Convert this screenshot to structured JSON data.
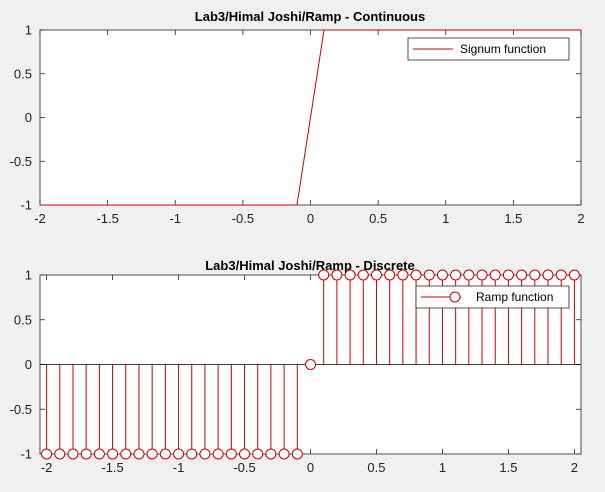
{
  "chart_data": [
    {
      "type": "line",
      "title": "Lab3/Himal Joshi/Ramp - Continuous",
      "xlabel": "",
      "ylabel": "",
      "xlim": [
        -2,
        2
      ],
      "ylim": [
        -1,
        1
      ],
      "xticks": [
        -2,
        -1.5,
        -1,
        -0.5,
        0,
        0.5,
        1,
        1.5,
        2
      ],
      "xtick_labels": [
        "-2",
        "-1.5",
        "-1",
        "-0.5",
        "0",
        "0.5",
        "1",
        "1.5",
        "2"
      ],
      "yticks": [
        1,
        0.5,
        0,
        -0.5,
        -1
      ],
      "ytick_labels": [
        "1",
        "0.5",
        "0",
        "-0.5",
        "-1"
      ],
      "grid": false,
      "legend_position": "top-right",
      "series": [
        {
          "name": "Signum function",
          "color": "#cc0000",
          "x": [
            -2,
            -0.1,
            0.1,
            2
          ],
          "y": [
            -1,
            -1,
            1,
            1
          ]
        }
      ]
    },
    {
      "type": "stem",
      "title": "Lab3/Himal Joshi/Ramp - Discrete",
      "xlabel": "",
      "ylabel": "",
      "xlim": [
        -2.05,
        2.05
      ],
      "ylim": [
        -1,
        1
      ],
      "xticks": [
        -2,
        -1.5,
        -1,
        -0.5,
        0,
        0.5,
        1,
        1.5,
        2
      ],
      "xtick_labels": [
        "-2",
        "-1.5",
        "-1",
        "-0.5",
        "0",
        "0.5",
        "1",
        "1.5",
        "2"
      ],
      "yticks": [
        1,
        0.5,
        0,
        -0.5,
        -1
      ],
      "ytick_labels": [
        "1",
        "0.5",
        "0",
        "-0.5",
        "-1"
      ],
      "grid": false,
      "legend_position": "top-right",
      "series": [
        {
          "name": "Ramp function",
          "color": "#cc0000",
          "marker": "circle",
          "x": [
            -2,
            -1.9,
            -1.8,
            -1.7,
            -1.6,
            -1.5,
            -1.4,
            -1.3,
            -1.2,
            -1.1,
            -1,
            -0.9,
            -0.8,
            -0.7,
            -0.6,
            -0.5,
            -0.4,
            -0.3,
            -0.2,
            -0.1,
            0,
            0.1,
            0.2,
            0.3,
            0.4,
            0.5,
            0.6,
            0.7,
            0.8,
            0.9,
            1,
            1.1,
            1.2,
            1.3,
            1.4,
            1.5,
            1.6,
            1.7,
            1.8,
            1.9,
            2
          ],
          "y": [
            -1,
            -1,
            -1,
            -1,
            -1,
            -1,
            -1,
            -1,
            -1,
            -1,
            -1,
            -1,
            -1,
            -1,
            -1,
            -1,
            -1,
            -1,
            -1,
            -1,
            0,
            1,
            1,
            1,
            1,
            1,
            1,
            1,
            1,
            1,
            1,
            1,
            1,
            1,
            1,
            1,
            1,
            1,
            1,
            1,
            1
          ]
        }
      ]
    }
  ]
}
